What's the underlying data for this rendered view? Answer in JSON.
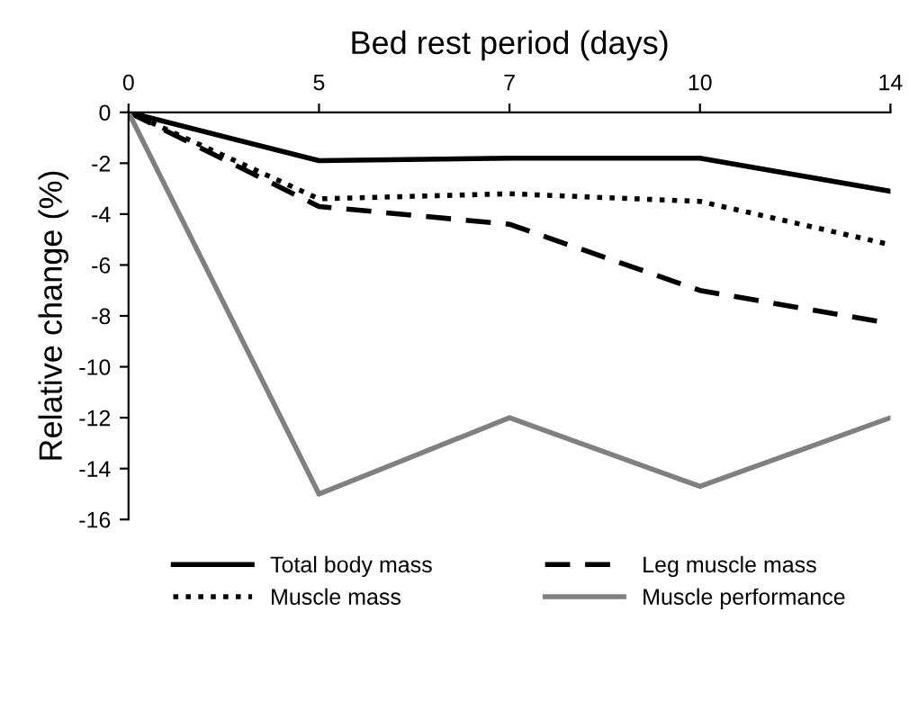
{
  "chart_data": {
    "type": "line",
    "xlabel": "Bed rest period (days)",
    "ylabel": "Relative change (%)",
    "categories": [
      "0",
      "5",
      "7",
      "10",
      "14"
    ],
    "series": [
      {
        "name": "Total body mass",
        "color": "#000000",
        "line_style": "solid",
        "values": [
          0,
          -1.9,
          -1.8,
          -1.8,
          -3.1
        ]
      },
      {
        "name": "Muscle mass",
        "color": "#000000",
        "line_style": "dotted",
        "values": [
          0,
          -3.4,
          -3.2,
          -3.5,
          -5.2
        ]
      },
      {
        "name": "Leg muscle mass",
        "color": "#000000",
        "line_style": "dashed",
        "values": [
          0,
          -3.7,
          -4.4,
          -7.0,
          -8.3
        ]
      },
      {
        "name": "Muscle performance",
        "color": "#808080",
        "line_style": "solid",
        "values": [
          0,
          -15,
          -12,
          -14.7,
          -12
        ]
      }
    ],
    "ylim": [
      -16,
      0
    ],
    "yticks": [
      -16,
      -14,
      -12,
      -10,
      -8,
      -6,
      -4,
      -2,
      0
    ],
    "grid": false,
    "legend": "bottom",
    "marker": "none"
  }
}
